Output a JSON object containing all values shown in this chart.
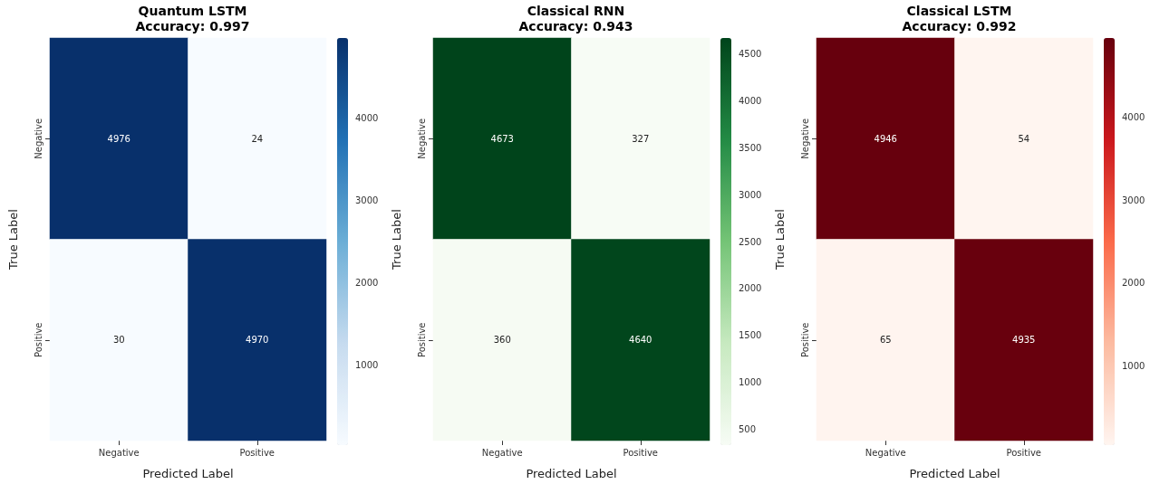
{
  "chart_data": [
    {
      "type": "heatmap",
      "title": "Quantum LSTM\nAccuracy: 0.997",
      "xlabel": "Predicted Label",
      "ylabel": "True Label",
      "categories": [
        "Negative",
        "Positive"
      ],
      "y_categories": [
        "Negative",
        "Positive"
      ],
      "cells": [
        [
          4976,
          24
        ],
        [
          30,
          4970
        ]
      ],
      "data_labels": true,
      "clim": [
        24,
        4976
      ],
      "cticks": [
        1000,
        2000,
        3000,
        4000
      ],
      "colors": [
        "#f7fbff",
        "#c6dbef",
        "#6baed6",
        "#2171b5",
        "#08306b"
      ]
    },
    {
      "type": "heatmap",
      "title": "Classical RNN\nAccuracy: 0.943",
      "xlabel": "Predicted Label",
      "ylabel": "True Label",
      "categories": [
        "Negative",
        "Positive"
      ],
      "y_categories": [
        "Negative",
        "Positive"
      ],
      "cells": [
        [
          4673,
          327
        ],
        [
          360,
          4640
        ]
      ],
      "data_labels": true,
      "clim": [
        327,
        4673
      ],
      "cticks": [
        500,
        1000,
        1500,
        2000,
        2500,
        3000,
        3500,
        4000,
        4500
      ],
      "colors": [
        "#f7fcf5",
        "#c7e9c0",
        "#74c476",
        "#238b45",
        "#00441b"
      ]
    },
    {
      "type": "heatmap",
      "title": "Classical LSTM\nAccuracy: 0.992",
      "xlabel": "Predicted Label",
      "ylabel": "True Label",
      "categories": [
        "Negative",
        "Positive"
      ],
      "y_categories": [
        "Negative",
        "Positive"
      ],
      "cells": [
        [
          4946,
          54
        ],
        [
          65,
          4935
        ]
      ],
      "data_labels": true,
      "clim": [
        54,
        4946
      ],
      "cticks": [
        1000,
        2000,
        3000,
        4000
      ],
      "colors": [
        "#fff5f0",
        "#fcbba1",
        "#fb6a4a",
        "#cb181d",
        "#67000d"
      ]
    }
  ]
}
